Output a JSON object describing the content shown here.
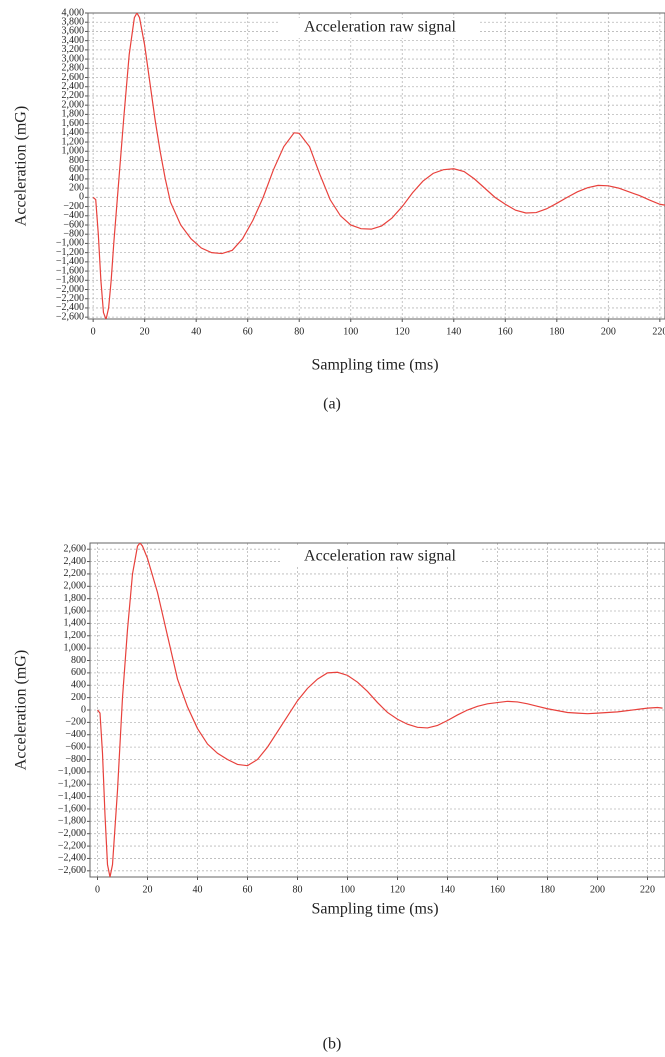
{
  "chart_data": [
    {
      "type": "line",
      "title": "Acceleration raw signal",
      "x_label": "Sampling time (ms)",
      "y_label": "Acceleration (mG)",
      "caption": "(a)",
      "color": "#e8413c",
      "grid": true,
      "xlim": [
        -2,
        222
      ],
      "ylim": [
        -2640,
        4000
      ],
      "xticks": [
        0,
        20,
        40,
        60,
        80,
        100,
        120,
        140,
        160,
        180,
        200,
        220
      ],
      "yticks": [
        {
          "value": 4000,
          "label": "4,000"
        },
        {
          "value": 3800,
          "label": "3,800"
        },
        {
          "value": 3600,
          "label": "3,600"
        },
        {
          "value": 3400,
          "label": "3,400"
        },
        {
          "value": 3200,
          "label": "3,200"
        },
        {
          "value": 3000,
          "label": "3,000"
        },
        {
          "value": 2800,
          "label": "2,800"
        },
        {
          "value": 2600,
          "label": "2,600"
        },
        {
          "value": 2400,
          "label": "2,400"
        },
        {
          "value": 2200,
          "label": "2,200"
        },
        {
          "value": 2000,
          "label": "2,000"
        },
        {
          "value": 1800,
          "label": "1,800"
        },
        {
          "value": 1600,
          "label": "1,600"
        },
        {
          "value": 1400,
          "label": "1,400"
        },
        {
          "value": 1200,
          "label": "1,200"
        },
        {
          "value": 1000,
          "label": "1,000"
        },
        800,
        600,
        400,
        200,
        0,
        {
          "value": -200,
          "label": "−200"
        },
        {
          "value": -400,
          "label": "−400"
        },
        {
          "value": -600,
          "label": "−600"
        },
        {
          "value": -800,
          "label": "−800"
        },
        {
          "value": -1000,
          "label": "−1,000"
        },
        {
          "value": -1200,
          "label": "−1,200"
        },
        {
          "value": -1400,
          "label": "−1,400"
        },
        {
          "value": -1600,
          "label": "−1,600"
        },
        {
          "value": -1800,
          "label": "−1,800"
        },
        {
          "value": -2000,
          "label": "−2,000"
        },
        {
          "value": -2200,
          "label": "−2,200"
        },
        {
          "value": -2400,
          "label": "−2,400"
        },
        {
          "value": -2600,
          "label": "−2,600"
        }
      ],
      "x": [
        0,
        1,
        2,
        3,
        4,
        5,
        6,
        7,
        8,
        10,
        12,
        14,
        16,
        17,
        18,
        20,
        22,
        24,
        26,
        28,
        30,
        34,
        38,
        42,
        46,
        50,
        54,
        58,
        62,
        66,
        70,
        74,
        78,
        80,
        84,
        88,
        92,
        96,
        100,
        104,
        108,
        112,
        116,
        120,
        124,
        128,
        132,
        136,
        140,
        144,
        148,
        152,
        156,
        160,
        164,
        168,
        172,
        176,
        180,
        184,
        188,
        192,
        196,
        200,
        204,
        208,
        212,
        216,
        220,
        222
      ],
      "values": [
        0,
        -50,
        -800,
        -1800,
        -2500,
        -2650,
        -2400,
        -1800,
        -1000,
        400,
        1800,
        3100,
        3900,
        4000,
        3900,
        3300,
        2500,
        1700,
        1000,
        400,
        -100,
        -600,
        -900,
        -1100,
        -1200,
        -1220,
        -1150,
        -900,
        -500,
        0,
        600,
        1100,
        1400,
        1390,
        1100,
        500,
        -50,
        -400,
        -600,
        -680,
        -690,
        -620,
        -450,
        -200,
        100,
        350,
        520,
        600,
        620,
        560,
        400,
        200,
        0,
        -150,
        -280,
        -340,
        -330,
        -250,
        -130,
        0,
        120,
        210,
        260,
        250,
        200,
        120,
        40,
        -60,
        -150,
        -170
      ]
    },
    {
      "type": "line",
      "title": "Acceleration raw signal",
      "x_label": "Sampling time (ms)",
      "y_label": "Acceleration (mG)",
      "caption": "(b)",
      "color": "#e8413c",
      "grid": true,
      "xlim": [
        -3,
        227
      ],
      "ylim": [
        -2700,
        2700
      ],
      "xticks": [
        0,
        20,
        40,
        60,
        80,
        100,
        120,
        140,
        160,
        180,
        200,
        220
      ],
      "yticks": [
        {
          "value": 2600,
          "label": "2,600"
        },
        {
          "value": 2400,
          "label": "2,400"
        },
        {
          "value": 2200,
          "label": "2,200"
        },
        {
          "value": 2000,
          "label": "2,000"
        },
        {
          "value": 1800,
          "label": "1,800"
        },
        {
          "value": 1600,
          "label": "1,600"
        },
        {
          "value": 1400,
          "label": "1,400"
        },
        {
          "value": 1200,
          "label": "1,200"
        },
        {
          "value": 1000,
          "label": "1,000"
        },
        800,
        600,
        400,
        200,
        0,
        {
          "value": -200,
          "label": "−200"
        },
        {
          "value": -400,
          "label": "−400"
        },
        {
          "value": -600,
          "label": "−600"
        },
        {
          "value": -800,
          "label": "−800"
        },
        {
          "value": -1000,
          "label": "−1,000"
        },
        {
          "value": -1200,
          "label": "−1,200"
        },
        {
          "value": -1400,
          "label": "−1,400"
        },
        {
          "value": -1600,
          "label": "−1,600"
        },
        {
          "value": -1800,
          "label": "−1,800"
        },
        {
          "value": -2000,
          "label": "−2,000"
        },
        {
          "value": -2200,
          "label": "−2,200"
        },
        {
          "value": -2400,
          "label": "−2,400"
        },
        {
          "value": -2600,
          "label": "−2,600"
        }
      ],
      "x": [
        0,
        1,
        2,
        3,
        4,
        5,
        6,
        7,
        8,
        10,
        12,
        14,
        16,
        17,
        18,
        20,
        24,
        28,
        32,
        36,
        40,
        44,
        48,
        52,
        56,
        60,
        64,
        68,
        72,
        76,
        80,
        84,
        88,
        92,
        96,
        100,
        104,
        108,
        112,
        116,
        120,
        124,
        128,
        132,
        136,
        140,
        144,
        148,
        152,
        156,
        160,
        164,
        168,
        172,
        176,
        180,
        184,
        188,
        192,
        196,
        200,
        204,
        208,
        212,
        216,
        220,
        224,
        226
      ],
      "values": [
        0,
        -50,
        -700,
        -1700,
        -2500,
        -2700,
        -2500,
        -1900,
        -1300,
        200,
        1300,
        2200,
        2650,
        2700,
        2650,
        2450,
        1900,
        1200,
        500,
        50,
        -300,
        -550,
        -700,
        -800,
        -880,
        -900,
        -800,
        -600,
        -350,
        -100,
        150,
        350,
        500,
        600,
        610,
        560,
        450,
        300,
        120,
        -40,
        -150,
        -230,
        -280,
        -290,
        -250,
        -170,
        -80,
        0,
        60,
        100,
        120,
        140,
        130,
        100,
        60,
        20,
        -10,
        -40,
        -50,
        -60,
        -50,
        -40,
        -30,
        -10,
        10,
        30,
        40,
        30
      ]
    }
  ]
}
